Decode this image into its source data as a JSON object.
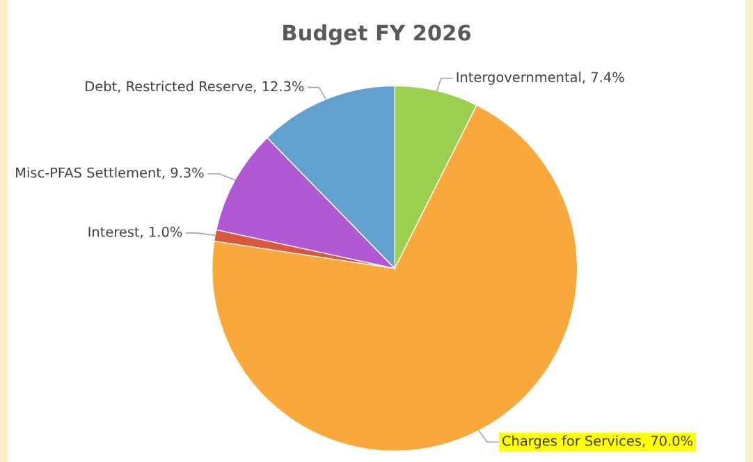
{
  "chart_data": {
    "type": "pie",
    "title": "Budget FY 2026",
    "categories": [
      "Intergovernmental",
      "Charges for Services",
      "Interest",
      "Misc-PFAS Settlement",
      "Debt, Restricted Reserve"
    ],
    "values": [
      7.4,
      70.0,
      1.0,
      9.3,
      12.3
    ],
    "value_labels": [
      "7.4%",
      "70.0%",
      "1.0%",
      "9.3%",
      "12.3%"
    ],
    "colors": [
      "#9dcf4e",
      "#f9a83c",
      "#d9573a",
      "#b158d4",
      "#62a1cd"
    ],
    "legend": false
  }
}
